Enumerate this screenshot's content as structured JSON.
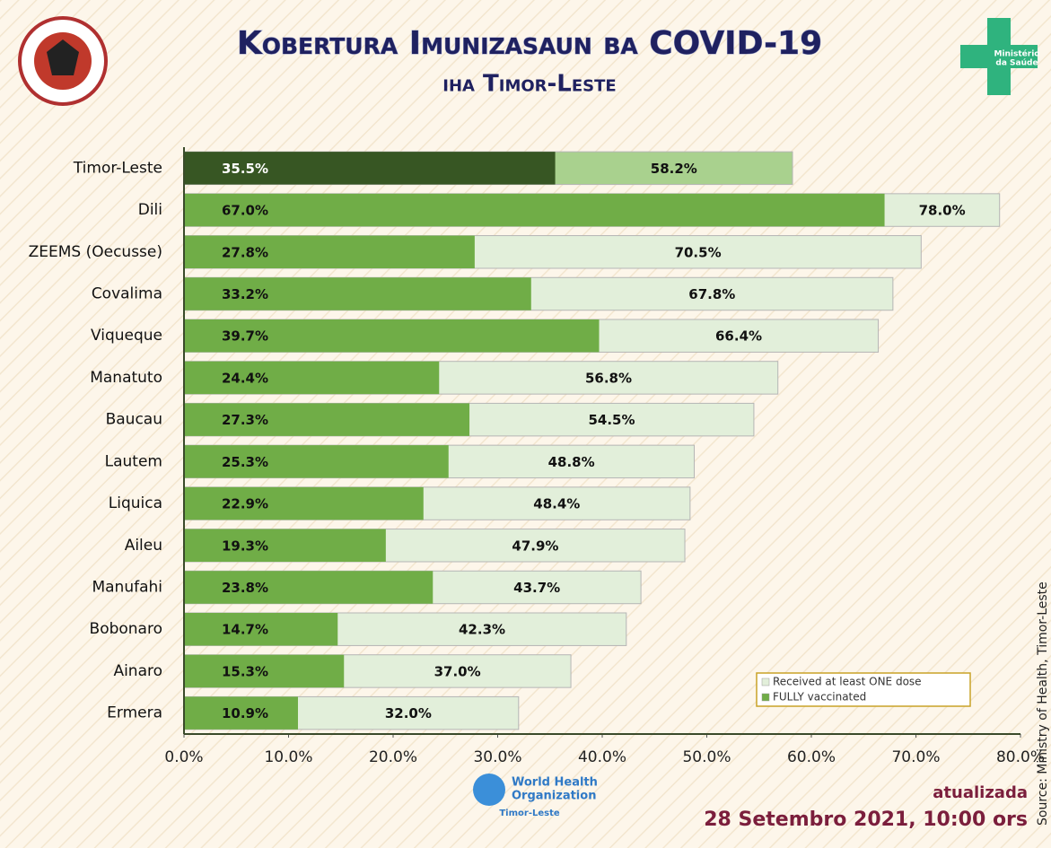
{
  "chart_data": {
    "type": "overlap-bar-horizontal",
    "title": "Kobertura Imunizasaun ba COVID-19",
    "subtitle": "iha Timor-Leste",
    "categories": [
      "Timor-Leste",
      "Dili",
      "ZEEMS (Oecusse)",
      "Covalima",
      "Viqueque",
      "Manatuto",
      "Baucau",
      "Lautem",
      "Liquica",
      "Aileu",
      "Manufahi",
      "Bobonaro",
      "Ainaro",
      "Ermera"
    ],
    "series": [
      {
        "name": "Received at least ONE dose",
        "color": "#e2efda",
        "colors": [
          "#a9d18e",
          "#e2efda",
          "#e2efda",
          "#e2efda",
          "#e2efda",
          "#e2efda",
          "#e2efda",
          "#e2efda",
          "#e2efda",
          "#e2efda",
          "#e2efda",
          "#e2efda",
          "#e2efda",
          "#e2efda"
        ],
        "values": [
          58.2,
          78.0,
          70.5,
          67.8,
          66.4,
          56.8,
          54.5,
          48.8,
          48.4,
          47.9,
          43.7,
          42.3,
          37.0,
          32.0
        ],
        "value_labels": [
          "58.2%",
          "78.0%",
          "70.5%",
          "67.8%",
          "66.4%",
          "56.8%",
          "54.5%",
          "48.8%",
          "48.4%",
          "47.9%",
          "43.7%",
          "42.3%",
          "37.0%",
          "32.0%"
        ]
      },
      {
        "name": "FULLY vaccinated",
        "color": "#70ad47",
        "colors": [
          "#375623",
          "#70ad47",
          "#70ad47",
          "#70ad47",
          "#70ad47",
          "#70ad47",
          "#70ad47",
          "#70ad47",
          "#70ad47",
          "#70ad47",
          "#70ad47",
          "#70ad47",
          "#70ad47",
          "#70ad47"
        ],
        "values": [
          35.5,
          67.0,
          27.8,
          33.2,
          39.7,
          24.4,
          27.3,
          25.3,
          22.9,
          19.3,
          23.8,
          14.7,
          15.3,
          10.9
        ],
        "value_labels": [
          "35.5%",
          "67.0%",
          "27.8%",
          "33.2%",
          "39.7%",
          "24.4%",
          "27.3%",
          "25.3%",
          "22.9%",
          "19.3%",
          "23.8%",
          "14.7%",
          "15.3%",
          "10.9%"
        ]
      }
    ],
    "xlim": [
      0,
      80
    ],
    "xticks": [
      {
        "value": 0,
        "label": "0.0%"
      },
      {
        "value": 10,
        "label": "10.0%"
      },
      {
        "value": 20,
        "label": "20.0%"
      },
      {
        "value": 30,
        "label": "30.0%"
      },
      {
        "value": 40,
        "label": "40.0%"
      },
      {
        "value": 50,
        "label": "50.0%"
      },
      {
        "value": 60,
        "label": "60.0%"
      },
      {
        "value": 70,
        "label": "70.0%"
      },
      {
        "value": 80,
        "label": "80.0%"
      }
    ],
    "legend": "lower right",
    "updated_label": "atualizada",
    "updated_date": "28 Setembro 2021, 10:00 ors",
    "source": "Source: Ministry of Health, Timor-Leste"
  },
  "logos": {
    "who_line1": "World Health",
    "who_line2": "Organization",
    "who_country": "Timor-Leste",
    "ministry_line1": "Ministério",
    "ministry_line2": "da Saúde"
  }
}
